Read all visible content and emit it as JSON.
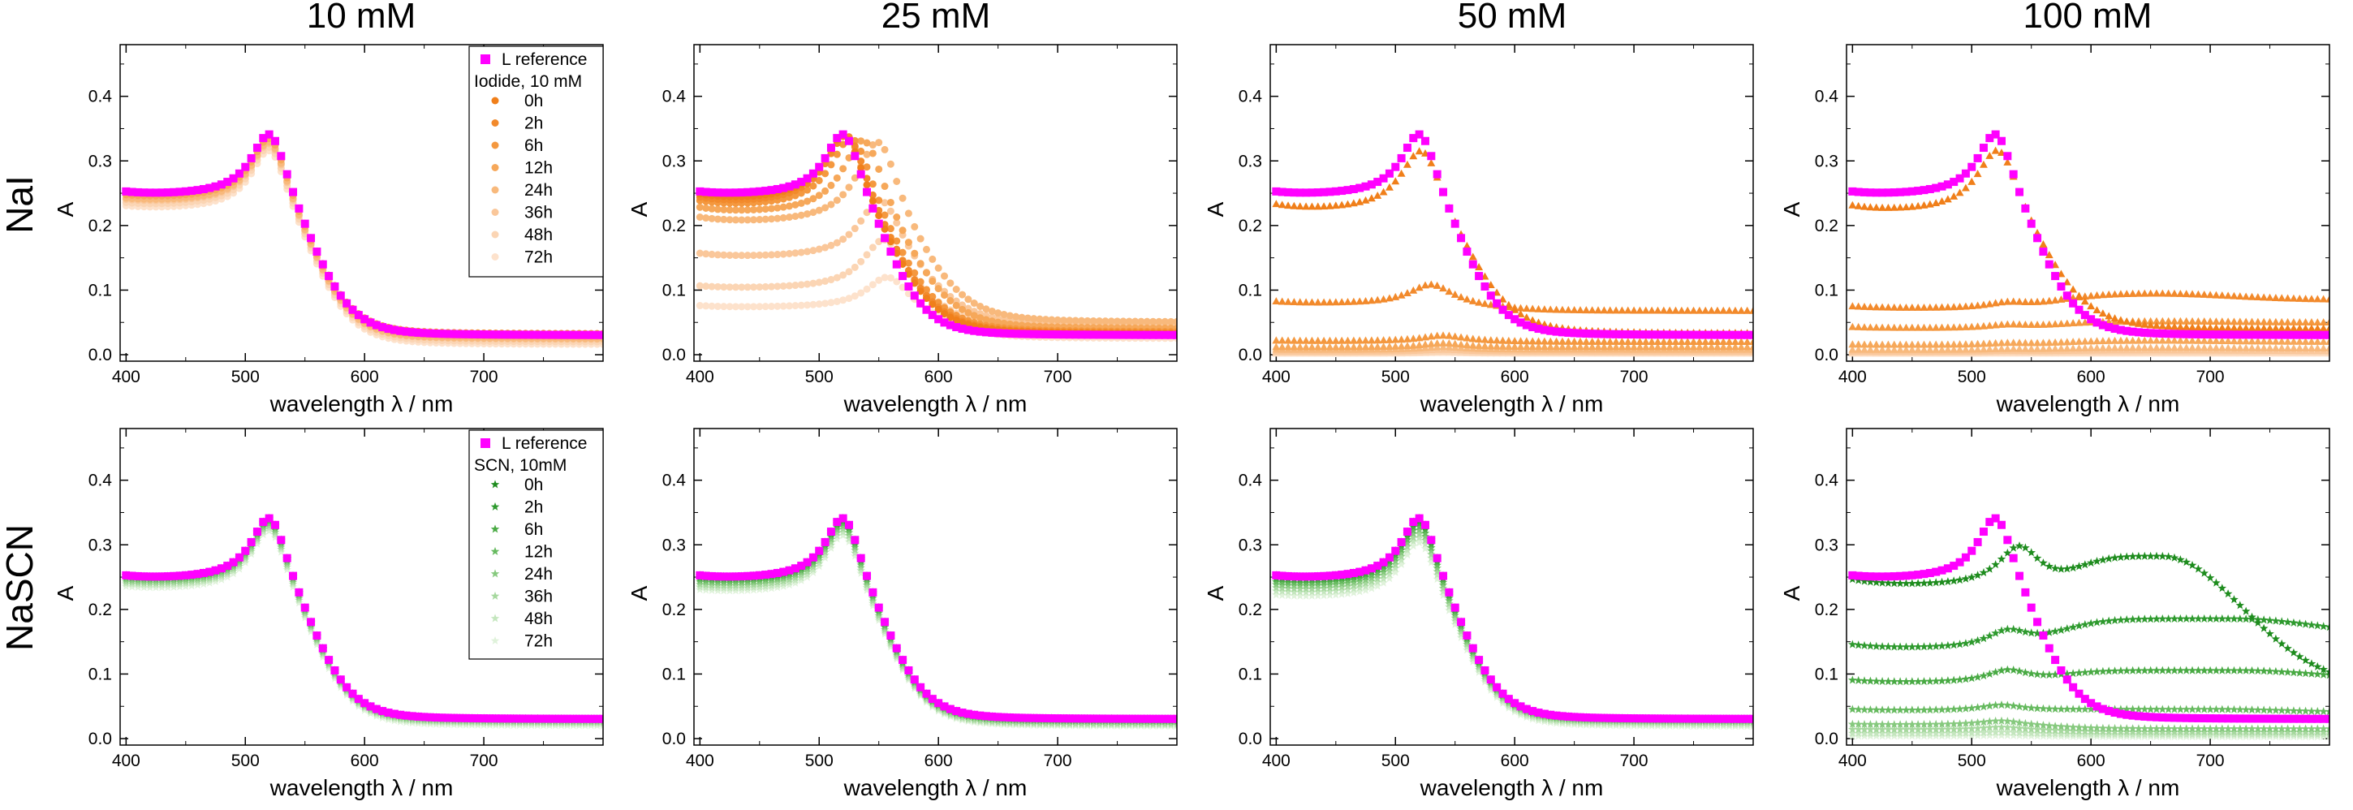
{
  "figure": {
    "column_titles": [
      "10 mM",
      "25 mM",
      "50 mM",
      "100 mM"
    ],
    "row_titles": [
      "NaI",
      "NaSCN"
    ]
  },
  "legend_nai": {
    "reference_label": "L reference",
    "header": "Iodide, 10 mM",
    "items": [
      "0h",
      "2h",
      "6h",
      "12h",
      "24h",
      "36h",
      "48h",
      "72h"
    ]
  },
  "legend_nascn": {
    "reference_label": "L reference",
    "header": "SCN, 10mM",
    "items": [
      "0h",
      "2h",
      "6h",
      "12h",
      "24h",
      "36h",
      "48h",
      "72h"
    ]
  },
  "colors": {
    "reference": "#ff00ff",
    "nai": [
      "#f07f1a",
      "#f28a2c",
      "#f4983f",
      "#f6a85a",
      "#f8b97c",
      "#fac79a",
      "#fbd5b4",
      "#fde2cc"
    ],
    "nascn": [
      "#1e8c1e",
      "#2e9a2e",
      "#49aa44",
      "#66ba5f",
      "#86c97e",
      "#a6d89e",
      "#c4e6be",
      "#dff2da"
    ]
  },
  "chart_data": [
    {
      "type": "scatter",
      "panel": "NaI 10 mM",
      "title": "10 mM",
      "xlabel": "wavelength λ / nm",
      "ylabel": "A",
      "xlim": [
        395,
        800
      ],
      "ylim": [
        -0.01,
        0.48
      ],
      "xticks": [
        400,
        500,
        600,
        700
      ],
      "yticks": [
        0.0,
        0.1,
        0.2,
        0.3,
        0.4
      ],
      "reference": {
        "name": "L reference",
        "a400": 0.25,
        "peak": 0.36,
        "plateau": 0.03
      },
      "series": [
        {
          "name": "0h",
          "mode": "scale",
          "base": 0.25,
          "scale": 1.0
        },
        {
          "name": "2h",
          "mode": "scale",
          "base": 0.25,
          "scale": 0.995
        },
        {
          "name": "6h",
          "mode": "scale",
          "base": 0.25,
          "scale": 0.99
        },
        {
          "name": "12h",
          "mode": "scale",
          "base": 0.245,
          "scale": 0.985
        },
        {
          "name": "24h",
          "mode": "scale",
          "base": 0.24,
          "scale": 0.98
        },
        {
          "name": "36h",
          "mode": "scale",
          "base": 0.238,
          "scale": 0.975
        },
        {
          "name": "48h",
          "mode": "scale",
          "base": 0.233,
          "scale": 0.97
        },
        {
          "name": "72h",
          "mode": "scale",
          "base": 0.228,
          "scale": 0.965
        }
      ]
    },
    {
      "type": "scatter",
      "panel": "NaI 25 mM",
      "title": "25 mM",
      "xlabel": "wavelength λ / nm",
      "ylabel": "A",
      "xlim": [
        395,
        800
      ],
      "ylim": [
        -0.01,
        0.48
      ],
      "xticks": [
        400,
        500,
        600,
        700
      ],
      "yticks": [
        0.0,
        0.1,
        0.2,
        0.3,
        0.4
      ],
      "reference": {
        "name": "L reference",
        "a400": 0.25,
        "peak": 0.36,
        "plateau": 0.03
      },
      "series": [
        {
          "name": "0h",
          "mode": "agg",
          "a400": 0.245,
          "peak": 0.36,
          "pw": 522,
          "plateau": 0.032,
          "p2": 0.0,
          "w2": 600
        },
        {
          "name": "2h",
          "mode": "agg",
          "a400": 0.24,
          "peak": 0.36,
          "pw": 524,
          "plateau": 0.033,
          "p2": 0.0,
          "w2": 600
        },
        {
          "name": "6h",
          "mode": "agg",
          "a400": 0.235,
          "peak": 0.355,
          "pw": 528,
          "plateau": 0.035,
          "p2": 0.0,
          "w2": 600
        },
        {
          "name": "12h",
          "mode": "agg",
          "a400": 0.225,
          "peak": 0.35,
          "pw": 538,
          "plateau": 0.04,
          "p2": 0.0,
          "w2": 600
        },
        {
          "name": "24h",
          "mode": "agg",
          "a400": 0.21,
          "peak": 0.345,
          "pw": 550,
          "plateau": 0.05,
          "p2": 0.0,
          "w2": 600
        },
        {
          "name": "36h",
          "mode": "agg",
          "a400": 0.155,
          "peak": 0.25,
          "pw": 552,
          "plateau": 0.045,
          "p2": 0.0,
          "w2": 600
        },
        {
          "name": "48h",
          "mode": "agg",
          "a400": 0.105,
          "peak": 0.185,
          "pw": 555,
          "plateau": 0.035,
          "p2": 0.0,
          "w2": 600
        },
        {
          "name": "72h",
          "mode": "agg",
          "a400": 0.075,
          "peak": 0.125,
          "pw": 558,
          "plateau": 0.025,
          "p2": 0.0,
          "w2": 600
        }
      ]
    },
    {
      "type": "scatter",
      "panel": "NaI 50 mM",
      "title": "50 mM",
      "xlabel": "wavelength λ / nm",
      "ylabel": "A",
      "xlim": [
        395,
        800
      ],
      "ylim": [
        -0.01,
        0.48
      ],
      "xticks": [
        400,
        500,
        600,
        700
      ],
      "yticks": [
        0.0,
        0.1,
        0.2,
        0.3,
        0.4
      ],
      "reference": {
        "name": "L reference",
        "a400": 0.25,
        "peak": 0.36,
        "plateau": 0.03
      },
      "series": [
        {
          "name": "0h",
          "mode": "agg",
          "a400": 0.23,
          "peak": 0.335,
          "pw": 523,
          "plateau": 0.033,
          "p2": 0.0,
          "w2": 600
        },
        {
          "name": "2h",
          "mode": "agg",
          "a400": 0.082,
          "peak": 0.11,
          "pw": 530,
          "plateau": 0.068,
          "p2": 0.0,
          "w2": 600
        },
        {
          "name": "6h",
          "mode": "agg",
          "a400": 0.022,
          "peak": 0.03,
          "pw": 540,
          "plateau": 0.02,
          "p2": 0.0,
          "w2": 600
        },
        {
          "name": "12h",
          "mode": "agg",
          "a400": 0.012,
          "peak": 0.018,
          "pw": 540,
          "plateau": 0.012,
          "p2": 0.0,
          "w2": 600
        },
        {
          "name": "24h",
          "mode": "agg",
          "a400": 0.008,
          "peak": 0.012,
          "pw": 540,
          "plateau": 0.008,
          "p2": 0.0,
          "w2": 600
        },
        {
          "name": "36h",
          "mode": "agg",
          "a400": 0.005,
          "peak": 0.008,
          "pw": 540,
          "plateau": 0.005,
          "p2": 0.0,
          "w2": 600
        },
        {
          "name": "48h",
          "mode": "agg",
          "a400": 0.003,
          "peak": 0.005,
          "pw": 540,
          "plateau": 0.003,
          "p2": 0.0,
          "w2": 600
        },
        {
          "name": "72h",
          "mode": "agg",
          "a400": 0.002,
          "peak": 0.003,
          "pw": 540,
          "plateau": 0.002,
          "p2": 0.0,
          "w2": 600
        }
      ]
    },
    {
      "type": "scatter",
      "panel": "NaI 100 mM",
      "title": "100 mM",
      "xlabel": "wavelength λ / nm",
      "ylabel": "A",
      "xlim": [
        395,
        800
      ],
      "ylim": [
        -0.01,
        0.48
      ],
      "xticks": [
        400,
        500,
        600,
        700
      ],
      "yticks": [
        0.0,
        0.1,
        0.2,
        0.3,
        0.4
      ],
      "reference": {
        "name": "L reference",
        "a400": 0.25,
        "peak": 0.36,
        "plateau": 0.03
      },
      "series": [
        {
          "name": "0h",
          "mode": "agg",
          "a400": 0.228,
          "peak": 0.335,
          "pw": 523,
          "plateau": 0.04,
          "p2": 0.0,
          "w2": 600
        },
        {
          "name": "2h",
          "mode": "agg",
          "a400": 0.075,
          "peak": 0.08,
          "pw": 530,
          "plateau": 0.085,
          "p2": 0.095,
          "w2": 650
        },
        {
          "name": "6h",
          "mode": "agg",
          "a400": 0.043,
          "peak": 0.046,
          "pw": 530,
          "plateau": 0.05,
          "p2": 0.052,
          "w2": 650
        },
        {
          "name": "12h",
          "mode": "agg",
          "a400": 0.016,
          "peak": 0.018,
          "pw": 530,
          "plateau": 0.02,
          "p2": 0.022,
          "w2": 650
        },
        {
          "name": "24h",
          "mode": "agg",
          "a400": 0.008,
          "peak": 0.009,
          "pw": 530,
          "plateau": 0.01,
          "p2": 0.011,
          "w2": 650
        },
        {
          "name": "36h",
          "mode": "agg",
          "a400": 0.005,
          "peak": 0.006,
          "pw": 530,
          "plateau": 0.006,
          "p2": 0.007,
          "w2": 650
        },
        {
          "name": "48h",
          "mode": "agg",
          "a400": 0.003,
          "peak": 0.004,
          "pw": 530,
          "plateau": 0.004,
          "p2": 0.004,
          "w2": 650
        },
        {
          "name": "72h",
          "mode": "agg",
          "a400": 0.002,
          "peak": 0.002,
          "pw": 530,
          "plateau": 0.002,
          "p2": 0.002,
          "w2": 650
        }
      ]
    },
    {
      "type": "scatter",
      "panel": "NaSCN 10 mM",
      "title": "10 mM",
      "xlabel": "wavelength λ / nm",
      "ylabel": "A",
      "xlim": [
        395,
        800
      ],
      "ylim": [
        -0.01,
        0.48
      ],
      "xticks": [
        400,
        500,
        600,
        700
      ],
      "yticks": [
        0.0,
        0.1,
        0.2,
        0.3,
        0.4
      ],
      "reference": {
        "name": "L reference",
        "a400": 0.25,
        "peak": 0.36,
        "plateau": 0.03
      },
      "series": [
        {
          "name": "0h",
          "mode": "scale",
          "base": 0.25,
          "scale": 1.0
        },
        {
          "name": "2h",
          "mode": "scale",
          "base": 0.249,
          "scale": 0.998
        },
        {
          "name": "6h",
          "mode": "scale",
          "base": 0.248,
          "scale": 0.995
        },
        {
          "name": "12h",
          "mode": "scale",
          "base": 0.246,
          "scale": 0.99
        },
        {
          "name": "24h",
          "mode": "scale",
          "base": 0.243,
          "scale": 0.985
        },
        {
          "name": "36h",
          "mode": "scale",
          "base": 0.24,
          "scale": 0.98
        },
        {
          "name": "48h",
          "mode": "scale",
          "base": 0.237,
          "scale": 0.975
        },
        {
          "name": "72h",
          "mode": "scale",
          "base": 0.233,
          "scale": 0.97
        }
      ]
    },
    {
      "type": "scatter",
      "panel": "NaSCN 25 mM",
      "title": "25 mM",
      "xlabel": "wavelength λ / nm",
      "ylabel": "A",
      "xlim": [
        395,
        800
      ],
      "ylim": [
        -0.01,
        0.48
      ],
      "xticks": [
        400,
        500,
        600,
        700
      ],
      "yticks": [
        0.0,
        0.1,
        0.2,
        0.3,
        0.4
      ],
      "reference": {
        "name": "L reference",
        "a400": 0.25,
        "peak": 0.36,
        "plateau": 0.03
      },
      "series": [
        {
          "name": "0h",
          "mode": "scale",
          "base": 0.25,
          "scale": 1.0
        },
        {
          "name": "2h",
          "mode": "scale",
          "base": 0.248,
          "scale": 0.995
        },
        {
          "name": "6h",
          "mode": "scale",
          "base": 0.246,
          "scale": 0.99
        },
        {
          "name": "12h",
          "mode": "scale",
          "base": 0.243,
          "scale": 0.985
        },
        {
          "name": "24h",
          "mode": "scale",
          "base": 0.24,
          "scale": 0.975
        },
        {
          "name": "36h",
          "mode": "scale",
          "base": 0.236,
          "scale": 0.97
        },
        {
          "name": "48h",
          "mode": "scale",
          "base": 0.232,
          "scale": 0.96
        },
        {
          "name": "72h",
          "mode": "scale",
          "base": 0.228,
          "scale": 0.95
        }
      ]
    },
    {
      "type": "scatter",
      "panel": "NaSCN 50 mM",
      "title": "50 mM",
      "xlabel": "wavelength λ / nm",
      "ylabel": "A",
      "xlim": [
        395,
        800
      ],
      "ylim": [
        -0.01,
        0.48
      ],
      "xticks": [
        400,
        500,
        600,
        700
      ],
      "yticks": [
        0.0,
        0.1,
        0.2,
        0.3,
        0.4
      ],
      "reference": {
        "name": "L reference",
        "a400": 0.25,
        "peak": 0.36,
        "plateau": 0.03
      },
      "series": [
        {
          "name": "0h",
          "mode": "scale",
          "base": 0.25,
          "scale": 1.0
        },
        {
          "name": "2h",
          "mode": "scale",
          "base": 0.247,
          "scale": 0.99
        },
        {
          "name": "6h",
          "mode": "scale",
          "base": 0.244,
          "scale": 0.98
        },
        {
          "name": "12h",
          "mode": "scale",
          "base": 0.24,
          "scale": 0.965
        },
        {
          "name": "24h",
          "mode": "scale",
          "base": 0.236,
          "scale": 0.955
        },
        {
          "name": "36h",
          "mode": "scale",
          "base": 0.231,
          "scale": 0.94
        },
        {
          "name": "48h",
          "mode": "scale",
          "base": 0.226,
          "scale": 0.93
        },
        {
          "name": "72h",
          "mode": "scale",
          "base": 0.22,
          "scale": 0.915
        }
      ]
    },
    {
      "type": "scatter",
      "panel": "NaSCN 100 mM",
      "title": "100 mM",
      "xlabel": "wavelength λ / nm",
      "ylabel": "A",
      "xlim": [
        395,
        800
      ],
      "ylim": [
        -0.01,
        0.48
      ],
      "xticks": [
        400,
        500,
        600,
        700
      ],
      "yticks": [
        0.0,
        0.1,
        0.2,
        0.3,
        0.4
      ],
      "reference": {
        "name": "L reference",
        "a400": 0.25,
        "peak": 0.36,
        "plateau": 0.03
      },
      "series": [
        {
          "name": "0h",
          "mode": "agg",
          "a400": 0.245,
          "peak": 0.3,
          "pw": 540,
          "plateau": 0.08,
          "p2": 0.28,
          "w2": 660
        },
        {
          "name": "2h",
          "mode": "agg",
          "a400": 0.145,
          "peak": 0.165,
          "pw": 530,
          "plateau": 0.16,
          "p2": 0.185,
          "w2": 720
        },
        {
          "name": "6h",
          "mode": "agg",
          "a400": 0.09,
          "peak": 0.105,
          "pw": 530,
          "plateau": 0.09,
          "p2": 0.105,
          "w2": 725
        },
        {
          "name": "12h",
          "mode": "agg",
          "a400": 0.045,
          "peak": 0.052,
          "pw": 525,
          "plateau": 0.04,
          "p2": 0.045,
          "w2": 700
        },
        {
          "name": "24h",
          "mode": "agg",
          "a400": 0.022,
          "peak": 0.028,
          "pw": 525,
          "plateau": 0.015,
          "p2": 0.0,
          "w2": 700
        },
        {
          "name": "36h",
          "mode": "agg",
          "a400": 0.014,
          "peak": 0.018,
          "pw": 525,
          "plateau": 0.01,
          "p2": 0.0,
          "w2": 700
        },
        {
          "name": "48h",
          "mode": "agg",
          "a400": 0.008,
          "peak": 0.01,
          "pw": 525,
          "plateau": 0.006,
          "p2": 0.0,
          "w2": 700
        },
        {
          "name": "72h",
          "mode": "agg",
          "a400": 0.004,
          "peak": 0.005,
          "pw": 525,
          "plateau": 0.003,
          "p2": 0.0,
          "w2": 700
        }
      ]
    }
  ]
}
